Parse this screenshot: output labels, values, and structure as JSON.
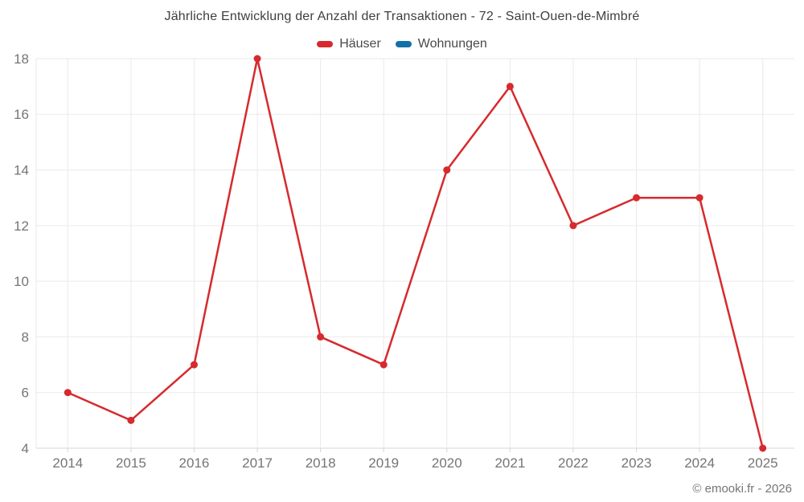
{
  "title": "Jährliche Entwicklung der Anzahl der Transaktionen - 72 - Saint-Ouen-de-Mimbré",
  "legend": [
    {
      "label": "Häuser",
      "color": "#d62a2e"
    },
    {
      "label": "Wohnungen",
      "color": "#1470a8"
    }
  ],
  "footer": "© emooki.fr - 2026",
  "chart_data": {
    "type": "line",
    "title": "Jährliche Entwicklung der Anzahl der Transaktionen - 72 - Saint-Ouen-de-Mimbré",
    "categories": [
      "2014",
      "2015",
      "2016",
      "2017",
      "2018",
      "2019",
      "2020",
      "2021",
      "2022",
      "2023",
      "2024",
      "2025"
    ],
    "series": [
      {
        "name": "Häuser",
        "color": "#d62a2e",
        "values": [
          6,
          5,
          7,
          18,
          8,
          7,
          14,
          17,
          12,
          13,
          13,
          4
        ]
      },
      {
        "name": "Wohnungen",
        "color": "#1470a8",
        "values": []
      }
    ],
    "xlabel": "",
    "ylabel": "",
    "ylim": [
      4,
      18
    ],
    "yticks": [
      4,
      6,
      8,
      10,
      12,
      14,
      16,
      18
    ],
    "grid": true,
    "legend_position": "top"
  },
  "colors": {
    "background": "#ffffff",
    "gridline": "#eaeaea",
    "axis_line": "#d5d5d5",
    "tick_text": "#757575",
    "title_text": "#3f3f3f",
    "footer_text": "#757575"
  }
}
